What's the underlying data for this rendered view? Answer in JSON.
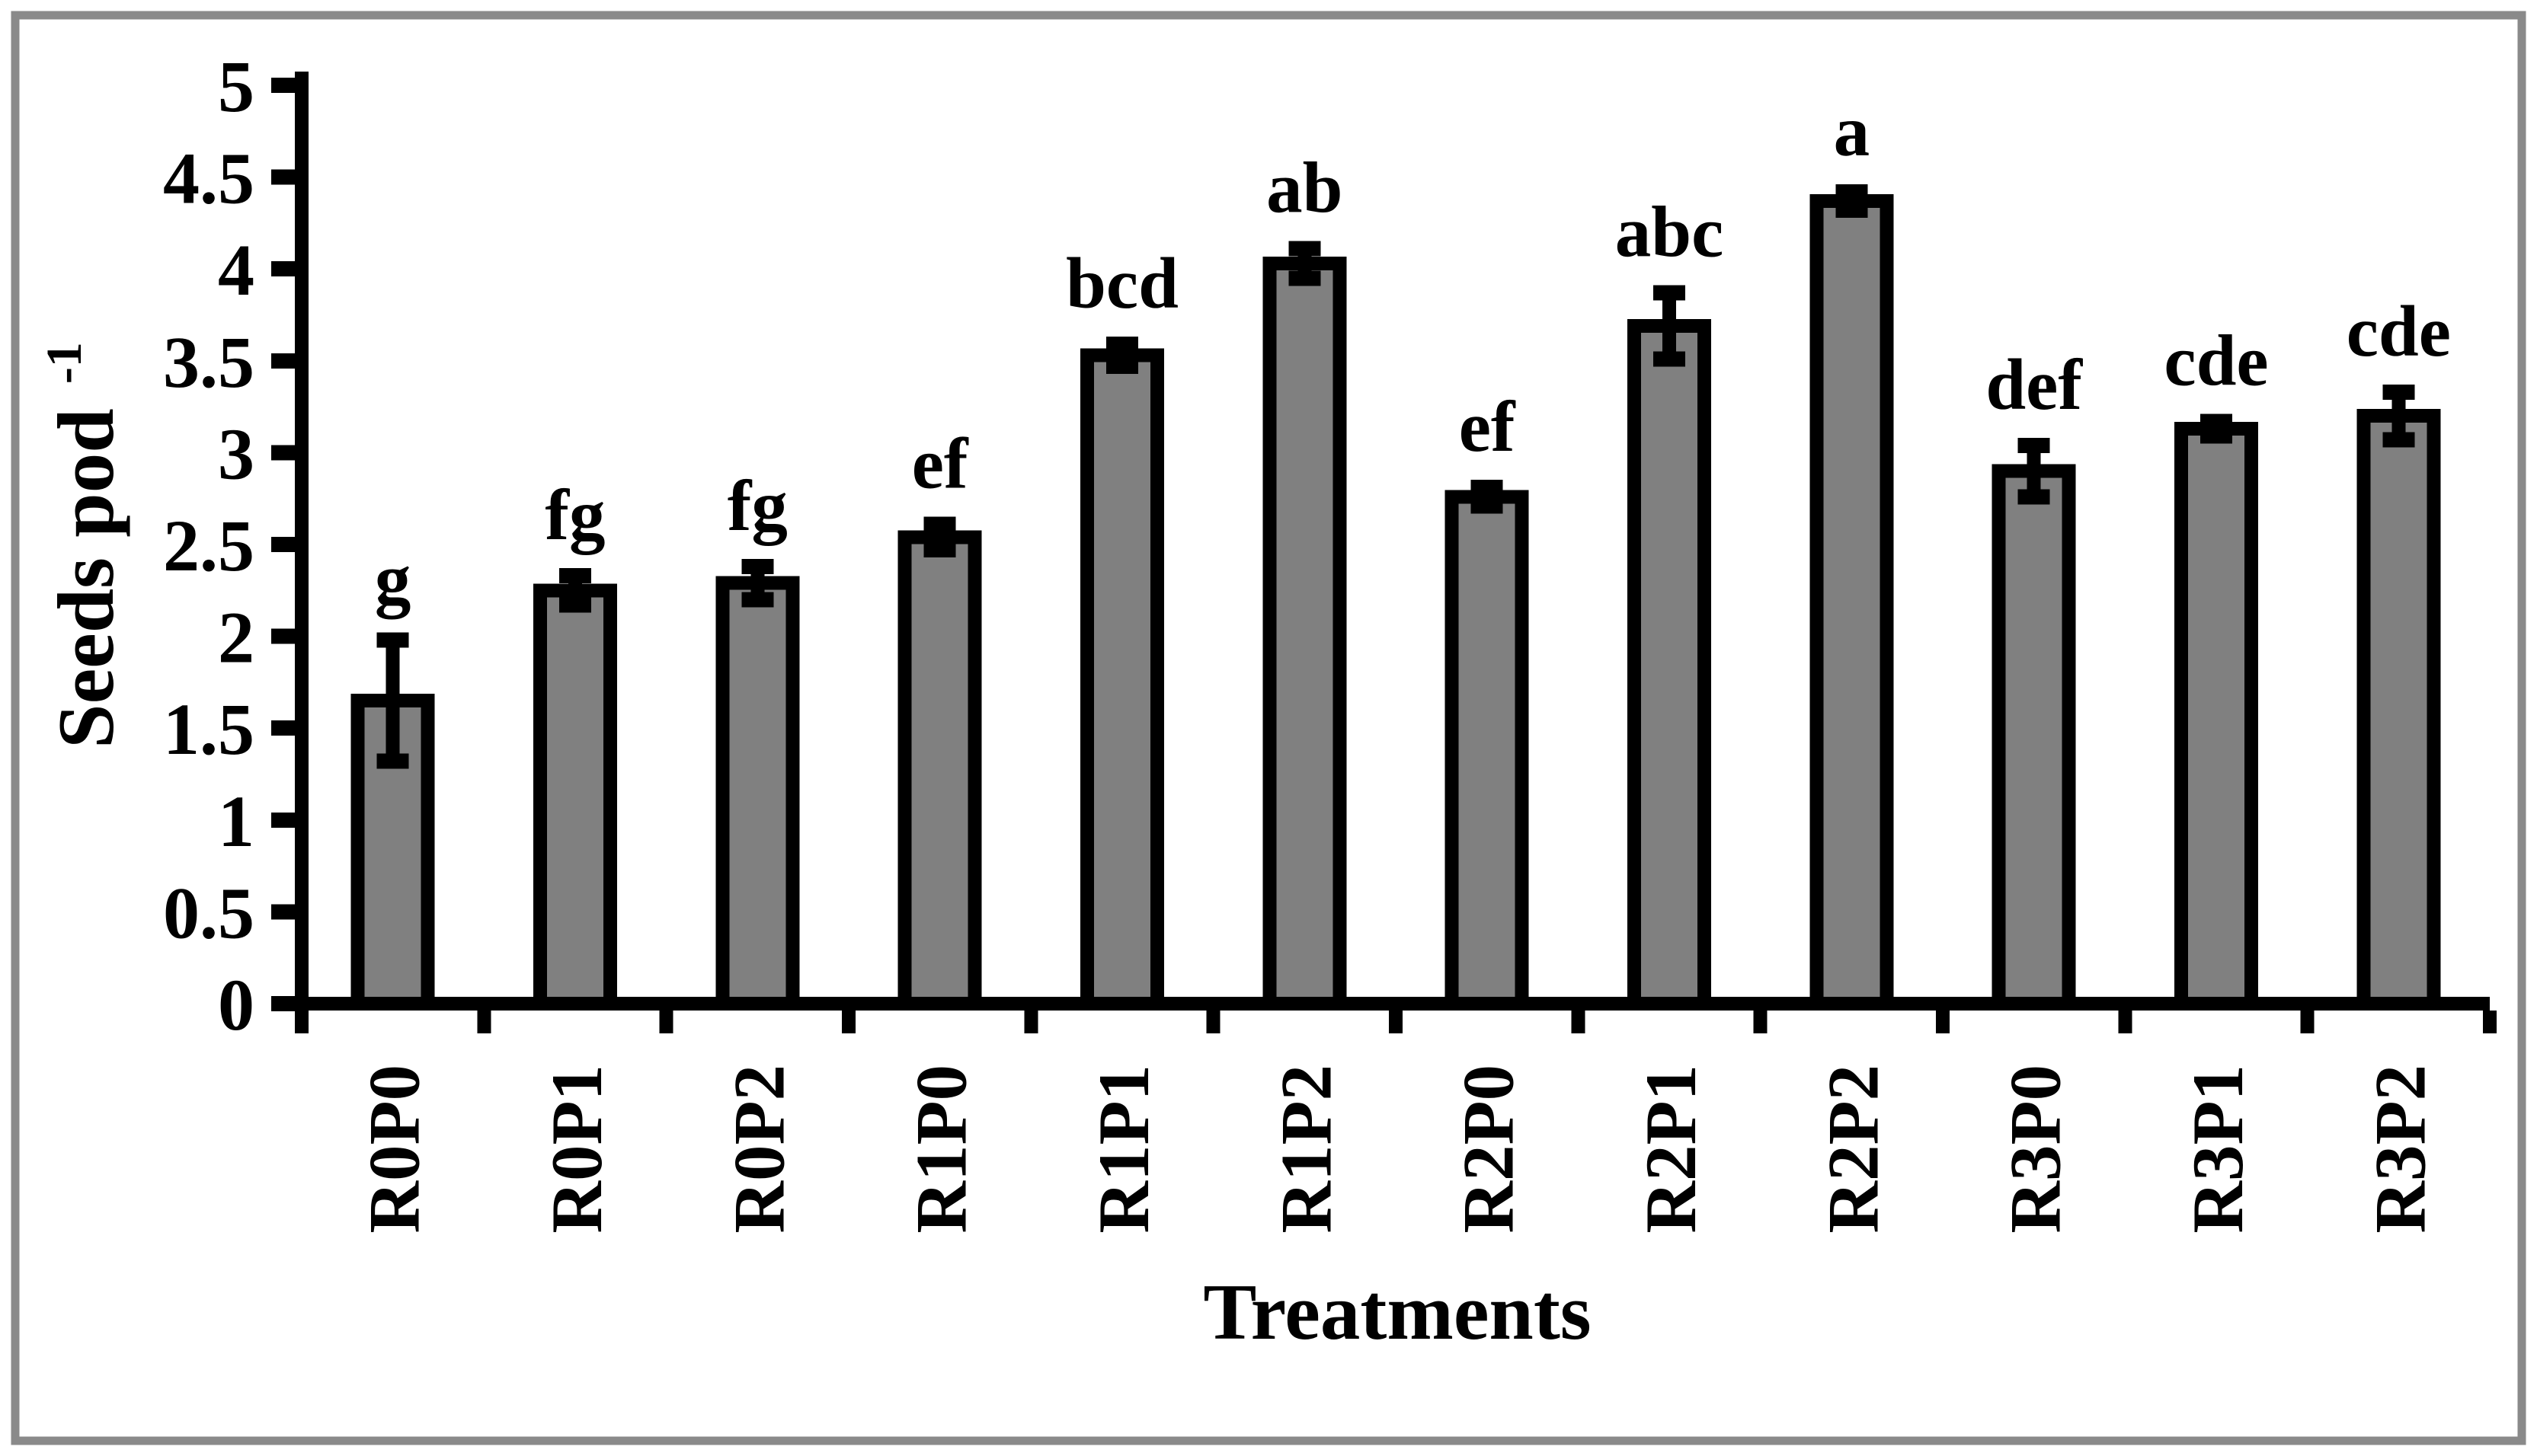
{
  "figure": {
    "background": "#ffffff",
    "frame_border_color": "#8a8a8a",
    "frame_border_width": 11
  },
  "chart_data": {
    "type": "bar",
    "title": "",
    "xlabel": "Treatments",
    "ylabel": "Seeds pod⁻¹",
    "ylabel_parts": {
      "base": "Seeds pod",
      "superscript": "-1"
    },
    "categories": [
      "R0P0",
      "R0P1",
      "R0P2",
      "R1P0",
      "R1P1",
      "R1P2",
      "R2P0",
      "R2P1",
      "R2P2",
      "R3P0",
      "R3P1",
      "R3P2"
    ],
    "values": [
      1.65,
      2.25,
      2.29,
      2.54,
      3.53,
      4.03,
      2.76,
      3.69,
      4.37,
      2.9,
      3.13,
      3.2
    ],
    "errors": [
      0.33,
      0.08,
      0.09,
      0.07,
      0.06,
      0.08,
      0.05,
      0.18,
      0.05,
      0.14,
      0.04,
      0.13
    ],
    "sig_labels": [
      "g",
      "fg",
      "fg",
      "ef",
      "bcd",
      "ab",
      "ef",
      "abc",
      "a",
      "def",
      "cde",
      "cde"
    ],
    "ylim": [
      0,
      5
    ],
    "ytick_step": 0.5,
    "ytick_labels": [
      "0",
      "0.5",
      "1",
      "1.5",
      "2",
      "2.5",
      "3",
      "3.5",
      "4",
      "4.5",
      "5"
    ],
    "grid": false,
    "legend": "none",
    "bar_fill": "#808080",
    "bar_border": "#000000",
    "error_color": "#000000",
    "axis_color": "#000000",
    "text_color": "#000000"
  }
}
